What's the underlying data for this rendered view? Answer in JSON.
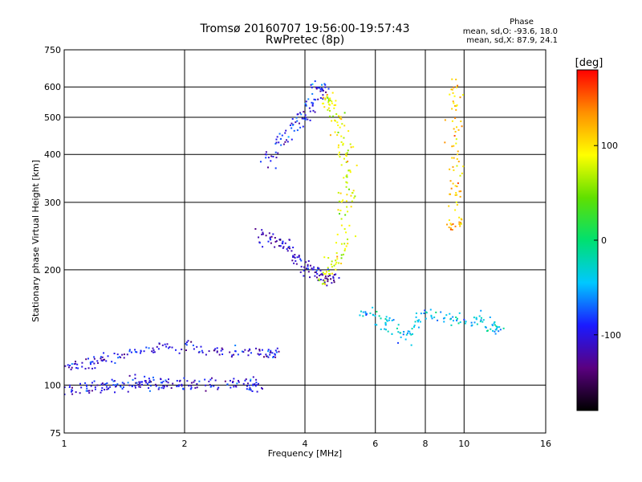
{
  "chart_data": {
    "type": "scatter",
    "title": "Tromsø 20160707 19:56:00-19:57:43",
    "subtitle": "RwPretec (8p)",
    "xlabel": "Frequency [MHz]",
    "ylabel": "Stationary phase Virtual Height [km]",
    "x_scale": "log",
    "y_scale": "log",
    "xlim": [
      1,
      16
    ],
    "ylim": [
      75,
      750
    ],
    "x_ticks": [
      1,
      2,
      4,
      6,
      8,
      10,
      16
    ],
    "x_tick_labels": [
      "1",
      "2",
      "4",
      "6",
      "8",
      "10",
      "16"
    ],
    "y_ticks": [
      75,
      100,
      200,
      300,
      400,
      500,
      600,
      750
    ],
    "y_tick_labels": [
      "75",
      "100",
      "200",
      "300",
      "400",
      "500",
      "600",
      "750"
    ],
    "grid": true,
    "phase_stats": {
      "heading": "Phase",
      "line_o": "mean, sd,O: -93.6, 18.0",
      "line_x": "mean, sd,X: 87.9, 24.1"
    },
    "colorbar": {
      "label": "[deg]",
      "range": [
        -180,
        180
      ],
      "ticks": [
        100,
        0,
        -100
      ],
      "tick_labels": [
        "100",
        "0",
        "-100"
      ],
      "colors": [
        "#000000",
        "#5a0080",
        "#1a1aff",
        "#00c8ff",
        "#00e070",
        "#60e000",
        "#ffff00",
        "#ff9000",
        "#ff0000"
      ]
    },
    "traces": [
      {
        "name": "o_low_layer",
        "phase": -100,
        "points": [
          [
            1.0,
            96
          ],
          [
            1.1,
            97
          ],
          [
            1.2,
            98
          ],
          [
            1.3,
            99
          ],
          [
            1.4,
            100
          ],
          [
            1.5,
            101
          ],
          [
            1.6,
            102
          ],
          [
            1.7,
            101
          ],
          [
            1.8,
            100
          ],
          [
            2.0,
            100
          ],
          [
            2.2,
            100
          ],
          [
            2.5,
            100
          ],
          [
            2.8,
            100
          ],
          [
            3.0,
            100
          ]
        ]
      },
      {
        "name": "o_low_layer_upper",
        "phase": -100,
        "points": [
          [
            1.0,
            112
          ],
          [
            1.1,
            112
          ],
          [
            1.2,
            115
          ],
          [
            1.3,
            118
          ],
          [
            1.5,
            122
          ],
          [
            1.7,
            125
          ],
          [
            2.0,
            125
          ],
          [
            2.3,
            123
          ],
          [
            2.6,
            122
          ],
          [
            3.0,
            122
          ],
          [
            3.3,
            121
          ]
        ]
      },
      {
        "name": "o_f_trace_lower",
        "phase": -110,
        "points": [
          [
            3.1,
            250
          ],
          [
            3.3,
            240
          ],
          [
            3.5,
            235
          ],
          [
            3.7,
            225
          ],
          [
            3.9,
            210
          ],
          [
            4.1,
            200
          ],
          [
            4.3,
            195
          ],
          [
            4.6,
            190
          ]
        ]
      },
      {
        "name": "o_f_trace_upper",
        "phase": -95,
        "points": [
          [
            3.2,
            380
          ],
          [
            3.4,
            420
          ],
          [
            3.6,
            450
          ],
          [
            3.8,
            480
          ],
          [
            4.0,
            510
          ],
          [
            4.2,
            550
          ],
          [
            4.4,
            600
          ]
        ]
      },
      {
        "name": "x_f_trace",
        "phase": 85,
        "points": [
          [
            4.4,
            180
          ],
          [
            4.6,
            200
          ],
          [
            4.8,
            215
          ],
          [
            5.0,
            240
          ],
          [
            5.1,
            300
          ],
          [
            5.2,
            330
          ],
          [
            5.1,
            380
          ],
          [
            5.0,
            420
          ],
          [
            4.9,
            470
          ],
          [
            4.7,
            520
          ],
          [
            4.6,
            560
          ]
        ]
      },
      {
        "name": "scatter_mid",
        "phase": -40,
        "points": [
          [
            5.5,
            160
          ],
          [
            6.0,
            150
          ],
          [
            6.5,
            145
          ],
          [
            7.0,
            130
          ],
          [
            7.5,
            140
          ],
          [
            8.0,
            155
          ],
          [
            9.0,
            150
          ],
          [
            10.0,
            145
          ],
          [
            11.0,
            150
          ],
          [
            12.0,
            140
          ]
        ]
      },
      {
        "name": "vertical_stripe",
        "phase": 110,
        "points": [
          [
            9.5,
            630
          ],
          [
            9.5,
            550
          ],
          [
            9.5,
            450
          ],
          [
            9.5,
            380
          ],
          [
            9.5,
            320
          ],
          [
            9.5,
            260
          ]
        ]
      }
    ]
  }
}
